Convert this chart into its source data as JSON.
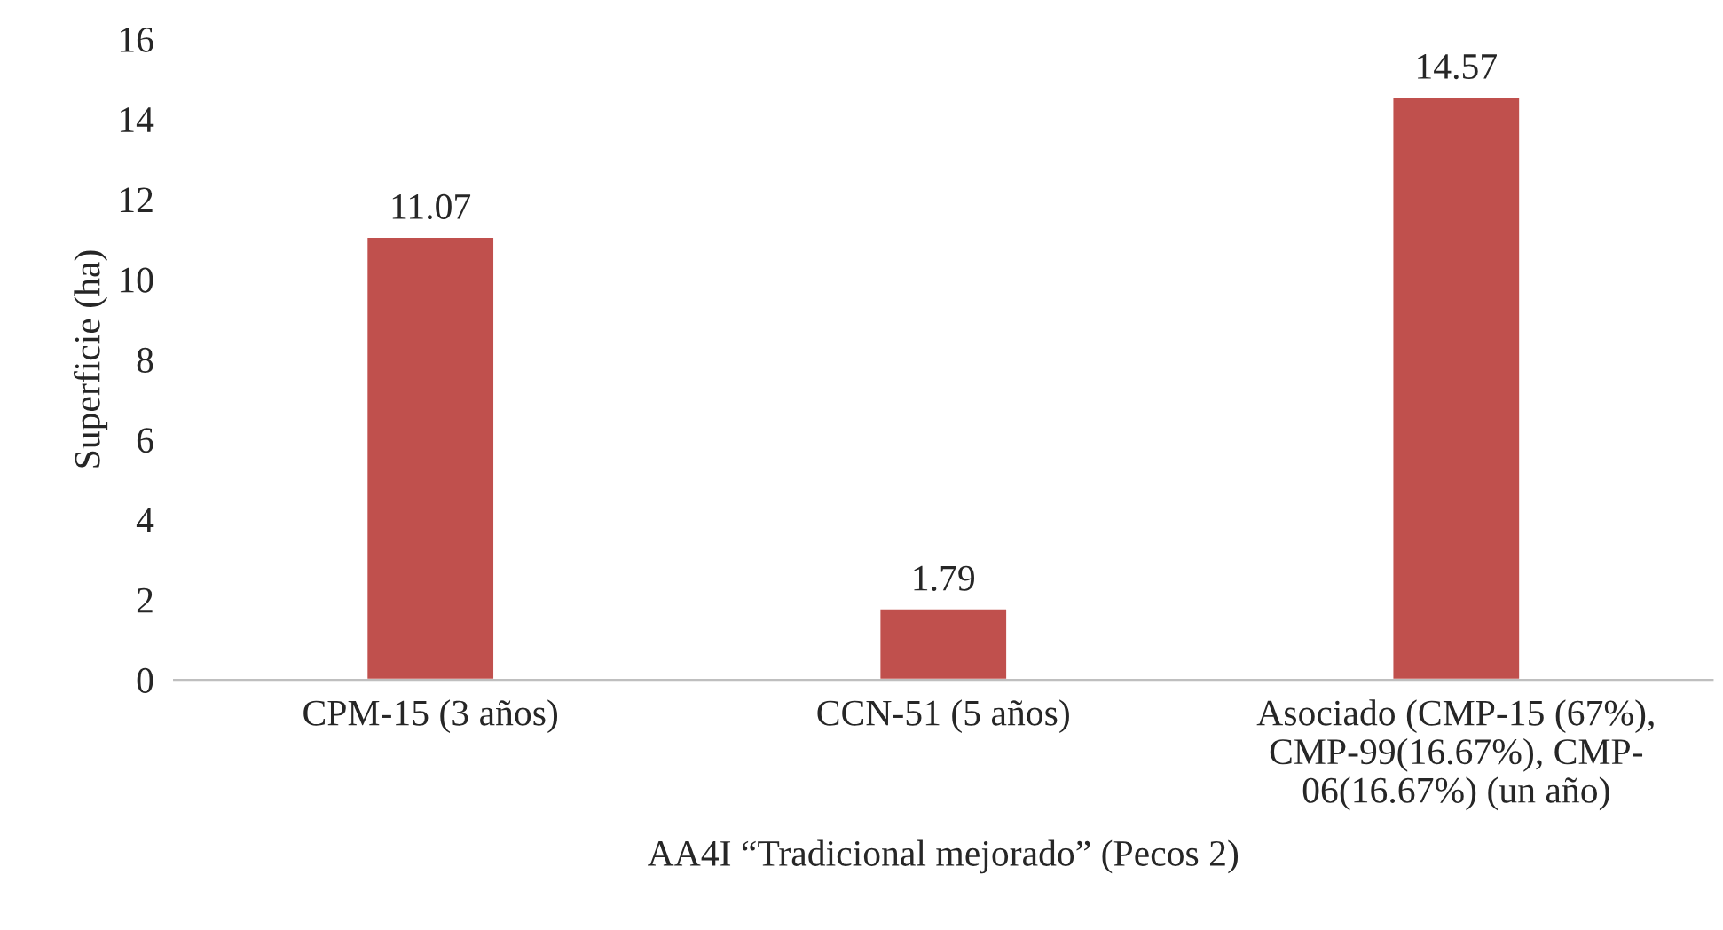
{
  "chart_data": {
    "type": "bar",
    "categories": [
      "CPM-15 (3 años)",
      "CCN-51 (5 años)",
      "Asociado (CMP-15 (67%),\nCMP-99(16.67%), CMP-\n06(16.67%) (un año)"
    ],
    "values": [
      11.07,
      1.79,
      14.57
    ],
    "color": "#c0504d",
    "ylabel": "Superficie (ha)",
    "xlabel": "AA4I “Tradicional mejorado” (Pecos 2)",
    "ylim": [
      0,
      16
    ],
    "yticks": [
      0,
      2,
      4,
      6,
      8,
      10,
      12,
      14,
      16
    ],
    "data_labels": true,
    "grid": false,
    "legend": false
  }
}
